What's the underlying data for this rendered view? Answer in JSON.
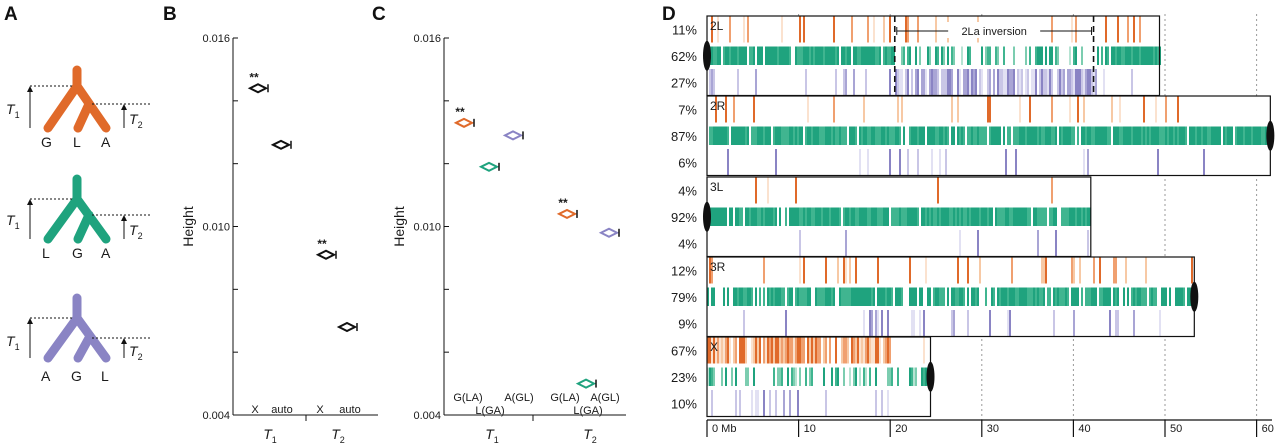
{
  "panels": {
    "a": "A",
    "b": "B",
    "c": "C",
    "d": "D"
  },
  "colors": {
    "orange": "#e06a2a",
    "green": "#1fa37e",
    "purple": "#8a84c4",
    "black": "#111111"
  },
  "tree_labels": {
    "t1": "T",
    "t1_sub": "1",
    "t2": "T",
    "t2_sub": "2"
  },
  "trees": [
    {
      "color": "orange",
      "leaves": [
        "G",
        "L",
        "A"
      ]
    },
    {
      "color": "green",
      "leaves": [
        "L",
        "G",
        "A"
      ]
    },
    {
      "color": "purple",
      "leaves": [
        "A",
        "G",
        "L"
      ]
    }
  ],
  "chart_data": [
    {
      "type": "scatter",
      "panel": "B",
      "ylabel": "Height",
      "ylim": [
        0.004,
        0.016
      ],
      "ytick_labels": [
        "0.016",
        "0.010",
        "0.004"
      ],
      "yticks": [
        0.016,
        0.014,
        0.012,
        0.01,
        0.008,
        0.006,
        0.004
      ],
      "points": [
        {
          "group": "T1",
          "label": "X",
          "value": 0.0144,
          "stars": "**",
          "color": "black"
        },
        {
          "group": "T1",
          "label": "auto",
          "value": 0.0126,
          "stars": "",
          "color": "black"
        },
        {
          "group": "T2",
          "label": "X",
          "value": 0.0091,
          "stars": "**",
          "color": "black"
        },
        {
          "group": "T2",
          "label": "auto",
          "value": 0.0068,
          "stars": "",
          "color": "black"
        }
      ],
      "group_labels": [
        {
          "main": "T",
          "sub": "1"
        },
        {
          "main": "T",
          "sub": "2"
        }
      ]
    },
    {
      "type": "scatter",
      "panel": "C",
      "ylabel": "Height",
      "ylim": [
        0.004,
        0.016
      ],
      "ytick_labels": [
        "0.016",
        "0.010",
        "0.004"
      ],
      "yticks": [
        0.016,
        0.014,
        0.012,
        0.01,
        0.008,
        0.006,
        0.004
      ],
      "points": [
        {
          "group": "T1",
          "label": "G(LA)",
          "value": 0.0133,
          "stars": "**",
          "color": "orange"
        },
        {
          "group": "T1",
          "label": "L(GA)",
          "value": 0.0119,
          "stars": "",
          "color": "green"
        },
        {
          "group": "T1",
          "label": "A(GL)",
          "value": 0.0129,
          "stars": "",
          "color": "purple"
        },
        {
          "group": "T2",
          "label": "G(LA)",
          "value": 0.0104,
          "stars": "**",
          "color": "orange"
        },
        {
          "group": "T2",
          "label": "L(GA)",
          "value": 0.005,
          "stars": "",
          "color": "green"
        },
        {
          "group": "T2",
          "label": "A(GL)",
          "value": 0.0098,
          "stars": "",
          "color": "purple"
        }
      ],
      "group_labels": [
        {
          "main": "T",
          "sub": "1"
        },
        {
          "main": "T",
          "sub": "2"
        }
      ]
    },
    {
      "type": "heatmap",
      "panel": "D",
      "xlabel_unit": "Mb",
      "xticks": [
        0,
        10,
        20,
        30,
        40,
        50,
        60
      ],
      "xtick_labels": [
        "0 Mb",
        "10",
        "20",
        "30",
        "40",
        "50",
        "60"
      ],
      "arms": [
        {
          "name": "2L",
          "length_mb": 49.4,
          "centromere": "left",
          "percents": [
            {
              "color": "orange",
              "label": "11%"
            },
            {
              "color": "green",
              "label": "62%"
            },
            {
              "color": "purple",
              "label": "27%"
            }
          ]
        },
        {
          "name": "2R",
          "length_mb": 61.5,
          "centromere": "right",
          "percents": [
            {
              "color": "orange",
              "label": "7%"
            },
            {
              "color": "green",
              "label": "87%"
            },
            {
              "color": "purple",
              "label": "6%"
            }
          ]
        },
        {
          "name": "3L",
          "length_mb": 41.9,
          "centromere": "left",
          "percents": [
            {
              "color": "orange",
              "label": "4%"
            },
            {
              "color": "green",
              "label": "92%"
            },
            {
              "color": "purple",
              "label": "4%"
            }
          ]
        },
        {
          "name": "3R",
          "length_mb": 53.2,
          "centromere": "right",
          "percents": [
            {
              "color": "orange",
              "label": "12%"
            },
            {
              "color": "green",
              "label": "79%"
            },
            {
              "color": "purple",
              "label": "9%"
            }
          ]
        },
        {
          "name": "X",
          "length_mb": 24.4,
          "centromere": "right",
          "percents": [
            {
              "color": "orange",
              "label": "67%"
            },
            {
              "color": "green",
              "label": "23%"
            },
            {
              "color": "purple",
              "label": "10%"
            }
          ]
        }
      ],
      "inversion": {
        "arm": "2L",
        "label": "2La inversion",
        "start_mb": 20.5,
        "end_mb": 42.2
      }
    }
  ]
}
